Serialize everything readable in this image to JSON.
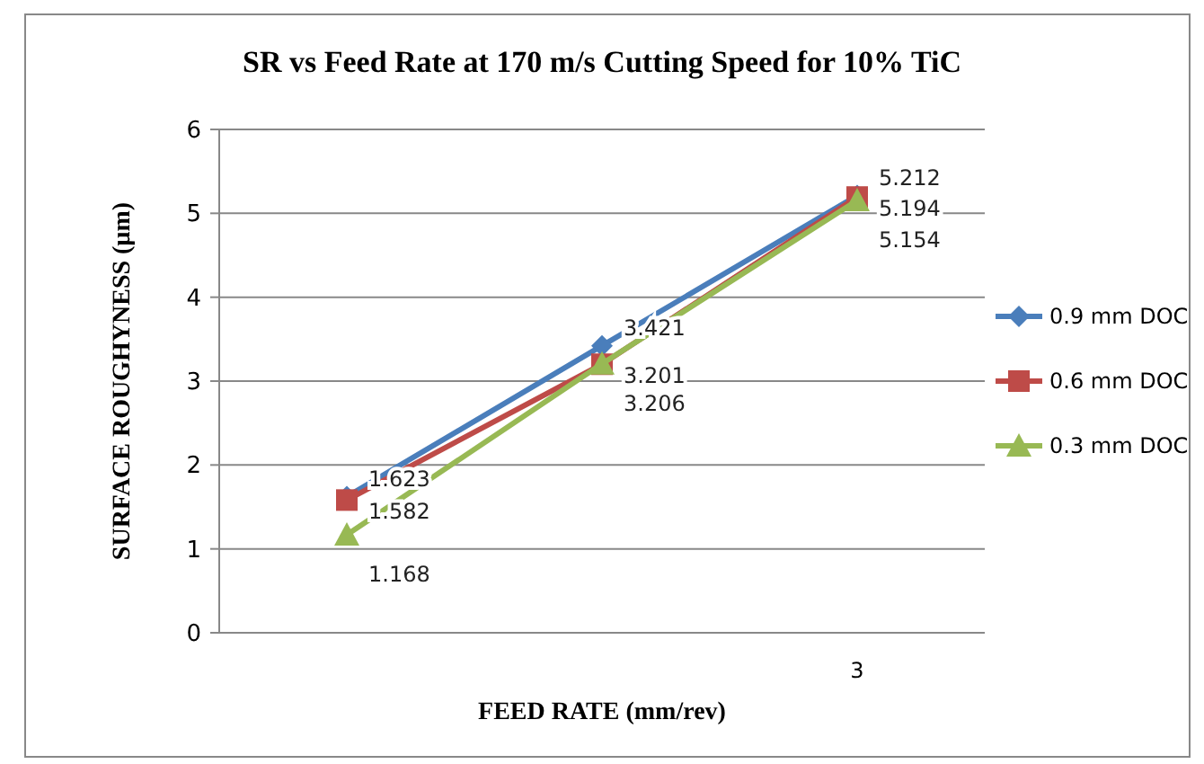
{
  "chart_data": {
    "type": "line",
    "title": "SR vs Feed Rate at 170 m/s Cutting Speed for 10% TiC",
    "xlabel": "FEED RATE (mm/rev)",
    "ylabel": "SURFACE ROUGHYNESS (µm)",
    "categories": [
      null,
      null,
      "3"
    ],
    "series": [
      {
        "name": "0.9 mm DOC",
        "color": "#4a7ebb",
        "marker": "diamond",
        "values": [
          1.623,
          3.421,
          5.212
        ]
      },
      {
        "name": "0.6 mm DOC",
        "color": "#be4b48",
        "marker": "square",
        "values": [
          1.582,
          3.201,
          5.194
        ]
      },
      {
        "name": "0.3 mm DOC",
        "color": "#98b954",
        "marker": "triangle",
        "values": [
          1.168,
          3.206,
          5.154
        ]
      }
    ],
    "ylim": [
      0,
      6
    ],
    "yticks": [
      0,
      1,
      2,
      3,
      4,
      5,
      6
    ],
    "grid": "y",
    "legend": "right",
    "data_labels": true
  }
}
